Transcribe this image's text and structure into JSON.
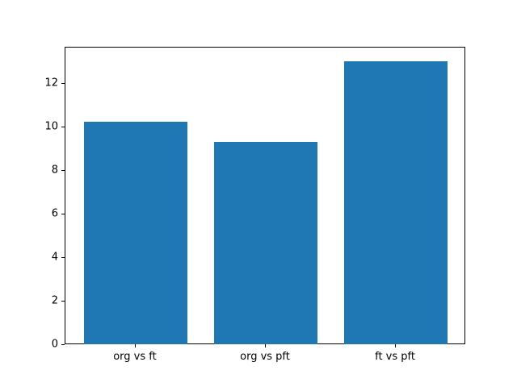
{
  "chart_data": {
    "type": "bar",
    "categories": [
      "org vs ft",
      "org vs pft",
      "ft vs pft"
    ],
    "values": [
      10.2,
      9.3,
      13.0
    ],
    "title": "",
    "xlabel": "",
    "ylabel": "",
    "ylim": [
      0,
      13.65
    ],
    "xlim": [
      -0.54,
      2.54
    ],
    "yticks": [
      0,
      2,
      4,
      6,
      8,
      10,
      12
    ],
    "bar_width": 0.8,
    "bar_color": "#1f77b4",
    "grid": false,
    "legend": false
  }
}
